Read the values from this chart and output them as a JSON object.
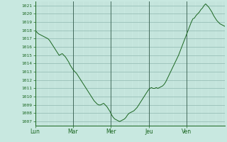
{
  "background_color": "#c8e8e0",
  "plot_bg_color": "#d8eee8",
  "line_color": "#1a6620",
  "grid_color_minor": "#b8d8d0",
  "grid_color_major": "#90b8b0",
  "tick_color": "#1a6620",
  "spine_color": "#1a6620",
  "ylim": [
    1006.5,
    1021.5
  ],
  "yticks": [
    1007,
    1008,
    1009,
    1010,
    1011,
    1012,
    1013,
    1014,
    1015,
    1016,
    1017,
    1018,
    1019,
    1020,
    1021
  ],
  "day_labels": [
    "Lun",
    "Mar",
    "Mer",
    "Jeu",
    "Ven"
  ],
  "day_positions": [
    0,
    24,
    48,
    72,
    96
  ],
  "total_hours": 120,
  "pressure_curve": [
    1018.0,
    1017.8,
    1017.6,
    1017.5,
    1017.4,
    1017.3,
    1017.2,
    1017.1,
    1017.0,
    1016.8,
    1016.5,
    1016.2,
    1015.9,
    1015.6,
    1015.3,
    1015.0,
    1015.1,
    1015.2,
    1015.0,
    1014.8,
    1014.5,
    1014.2,
    1013.8,
    1013.5,
    1013.2,
    1013.0,
    1012.8,
    1012.5,
    1012.2,
    1011.9,
    1011.6,
    1011.3,
    1011.0,
    1010.7,
    1010.4,
    1010.1,
    1009.8,
    1009.5,
    1009.3,
    1009.1,
    1009.0,
    1009.0,
    1009.1,
    1009.2,
    1009.0,
    1008.8,
    1008.5,
    1008.2,
    1007.8,
    1007.5,
    1007.3,
    1007.2,
    1007.1,
    1007.0,
    1007.1,
    1007.2,
    1007.3,
    1007.5,
    1007.8,
    1008.0,
    1008.1,
    1008.2,
    1008.3,
    1008.5,
    1008.7,
    1009.0,
    1009.3,
    1009.6,
    1009.9,
    1010.2,
    1010.5,
    1010.8,
    1011.0,
    1011.1,
    1011.0,
    1011.0,
    1011.1,
    1011.0,
    1011.1,
    1011.2,
    1011.3,
    1011.5,
    1011.8,
    1012.2,
    1012.6,
    1013.0,
    1013.4,
    1013.8,
    1014.2,
    1014.6,
    1015.0,
    1015.5,
    1016.0,
    1016.5,
    1017.0,
    1017.5,
    1018.0,
    1018.5,
    1019.0,
    1019.4,
    1019.5,
    1019.8,
    1020.0,
    1020.2,
    1020.5,
    1020.7,
    1021.0,
    1021.2,
    1021.0,
    1020.8,
    1020.5,
    1020.2,
    1019.8,
    1019.5,
    1019.2,
    1019.0,
    1018.8,
    1018.7,
    1018.6,
    1018.5
  ]
}
